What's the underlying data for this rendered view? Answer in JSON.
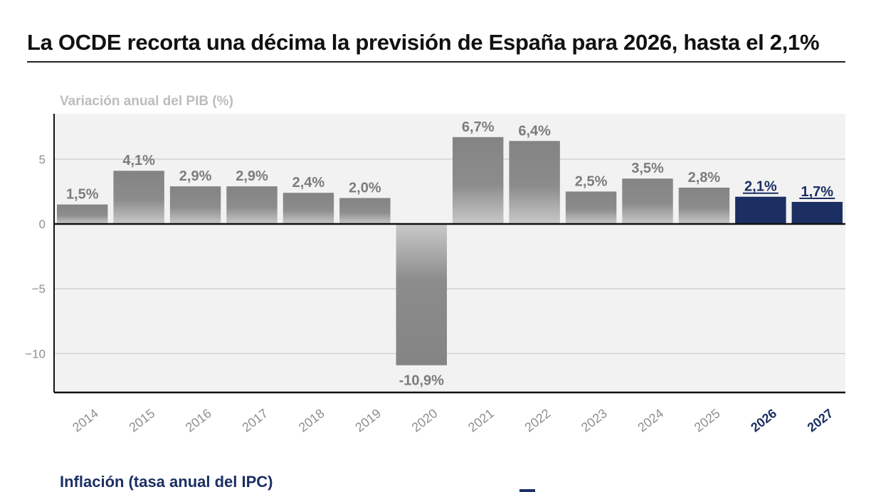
{
  "headline": "La OCDE recorta una décima la previsión de España para 2026, hasta el 2,1%",
  "colors": {
    "actual": "#8a8a8a",
    "forecast": "#1b2f63",
    "plot_background": "#f2f2f2",
    "tick_label": "#8f8f8f",
    "grid": "#c8c8c8"
  },
  "chart_data": {
    "type": "bar",
    "title": "Variación anual del PIB (%)",
    "xlabel": "",
    "ylabel": "",
    "categories": [
      "2014",
      "2015",
      "2016",
      "2017",
      "2018",
      "2019",
      "2020",
      "2021",
      "2022",
      "2023",
      "2024",
      "2025",
      "2026",
      "2027"
    ],
    "values": [
      1.5,
      4.1,
      2.9,
      2.9,
      2.4,
      2.0,
      -10.9,
      6.7,
      6.4,
      2.5,
      3.5,
      2.8,
      2.1,
      1.7
    ],
    "data_labels": [
      "1,5%",
      "4,1%",
      "2,9%",
      "2,9%",
      "2,4%",
      "2,0%",
      "-10,9%",
      "6,7%",
      "6,4%",
      "2,5%",
      "3,5%",
      "2,8%",
      "2,1%",
      "1,7%"
    ],
    "forecast_categories": [
      "2026",
      "2027"
    ],
    "yticks": [
      5,
      0,
      -5,
      -10
    ],
    "ytick_labels": [
      "5",
      "0",
      "−5",
      "−10"
    ],
    "ylim": [
      -13,
      8.5
    ],
    "grid": true
  },
  "next_section": {
    "title": "Inflación (tasa anual del IPC)"
  }
}
